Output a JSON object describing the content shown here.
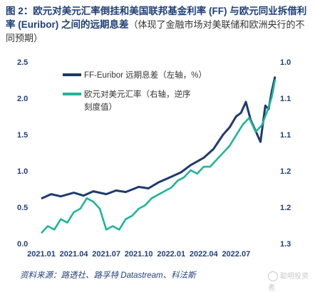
{
  "header": {
    "title_bold": "图 2：欧元对美元汇率倒挂和美国联邦基金利率 (FF) 与欧元同业拆借利率 (Euribor) 之间的远期息差",
    "title_sub": "（体现了金融市场对美联储和欧洲央行的不同预期）"
  },
  "colors": {
    "navy": "#1f3a6e",
    "teal": "#1db59a",
    "text": "#1f3f7a"
  },
  "chart_data": {
    "type": "line",
    "x_ticks": [
      "2021.01",
      "2021.04",
      "2021.07",
      "2021.10",
      "2022.01",
      "2022.04",
      "2022.07"
    ],
    "y_left": {
      "ticks": [
        "0.0",
        "0.5",
        "1.0",
        "1.5",
        "2.0",
        "2.5"
      ],
      "min": 0,
      "max": 2.5
    },
    "y_right": {
      "ticks": [
        "1.0",
        "1.1",
        "1.1",
        "1.2",
        "1.2",
        "1.3"
      ],
      "min": 0.98,
      "max": 1.24,
      "inverted": true
    },
    "legend": [
      {
        "label": "FF-Euribor 远期息差（左轴，%）",
        "color": "#1f3a6e"
      },
      {
        "label_line1": "欧元对美元汇率（右轴，逆序",
        "label_line2": "刻度值）",
        "color": "#1db59a"
      }
    ],
    "series": [
      {
        "name": "FF-Euribor 远期息差（左轴，%）",
        "axis": "left",
        "color": "#1f3a6e",
        "x": [
          0,
          0.3,
          0.6,
          1.0,
          1.3,
          1.6,
          2.0,
          2.3,
          2.6,
          3.0,
          3.3,
          3.6,
          4.0,
          4.3,
          4.6,
          5.0,
          5.3,
          5.6,
          5.8,
          6.0,
          6.15,
          6.3,
          6.45,
          6.6,
          6.75,
          6.9,
          7.0,
          7.1,
          7.2
        ],
        "y": [
          0.62,
          0.68,
          0.65,
          0.7,
          0.66,
          0.72,
          0.68,
          0.73,
          0.71,
          0.78,
          0.76,
          0.84,
          0.92,
          0.98,
          1.08,
          1.18,
          1.3,
          1.5,
          1.6,
          1.75,
          1.8,
          1.95,
          1.7,
          1.55,
          1.4,
          1.9,
          1.85,
          2.1,
          2.3
        ]
      },
      {
        "name": "欧元对美元汇率（右轴，逆序刻度值）",
        "axis": "right",
        "color": "#1db59a",
        "x": [
          0,
          0.2,
          0.4,
          0.6,
          0.8,
          1.0,
          1.2,
          1.4,
          1.6,
          1.8,
          2.0,
          2.2,
          2.4,
          2.6,
          2.8,
          3.0,
          3.2,
          3.4,
          3.6,
          3.8,
          4.0,
          4.2,
          4.4,
          4.6,
          4.8,
          5.0,
          5.2,
          5.4,
          5.6,
          5.8,
          6.0,
          6.2,
          6.4,
          6.6,
          6.8,
          7.0,
          7.1,
          7.2
        ],
        "y": [
          1.225,
          1.215,
          1.22,
          1.205,
          1.21,
          1.195,
          1.19,
          1.175,
          1.18,
          1.19,
          1.22,
          1.215,
          1.22,
          1.205,
          1.2,
          1.19,
          1.185,
          1.175,
          1.17,
          1.165,
          1.16,
          1.15,
          1.145,
          1.135,
          1.14,
          1.13,
          1.13,
          1.12,
          1.11,
          1.1,
          1.085,
          1.07,
          1.06,
          1.08,
          1.07,
          1.045,
          1.03,
          1.005
        ]
      }
    ]
  },
  "source": "资料来源：路透社、路孚特 Datastream、科法斯",
  "watermark": "聪明投资者"
}
